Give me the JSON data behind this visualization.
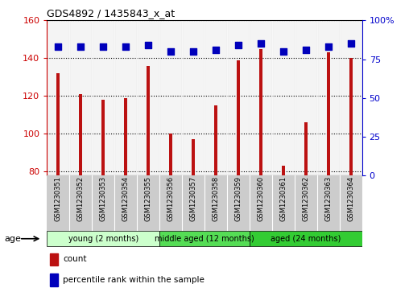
{
  "title": "GDS4892 / 1435843_x_at",
  "samples": [
    "GSM1230351",
    "GSM1230352",
    "GSM1230353",
    "GSM1230354",
    "GSM1230355",
    "GSM1230356",
    "GSM1230357",
    "GSM1230358",
    "GSM1230359",
    "GSM1230360",
    "GSM1230361",
    "GSM1230362",
    "GSM1230363",
    "GSM1230364"
  ],
  "counts": [
    132,
    121,
    118,
    119,
    136,
    100,
    97,
    115,
    139,
    145,
    83,
    106,
    143,
    140
  ],
  "percentiles": [
    83,
    83,
    83,
    83,
    84,
    80,
    80,
    81,
    84,
    85,
    80,
    81,
    83,
    85
  ],
  "ylim_left": [
    78,
    160
  ],
  "ylim_right": [
    0,
    100
  ],
  "yticks_left": [
    80,
    100,
    120,
    140,
    160
  ],
  "yticks_right": [
    0,
    25,
    50,
    75,
    100
  ],
  "bar_color": "#bb1111",
  "dot_color": "#0000bb",
  "groups": [
    {
      "label": "young (2 months)",
      "start": 0,
      "end": 5,
      "color": "#ccffcc"
    },
    {
      "label": "middle aged (12 months)",
      "start": 5,
      "end": 9,
      "color": "#55dd55"
    },
    {
      "label": "aged (24 months)",
      "start": 9,
      "end": 14,
      "color": "#33cc33"
    }
  ],
  "age_label": "age",
  "legend_count_label": "count",
  "legend_percentile_label": "percentile rank within the sample",
  "bar_width": 0.15,
  "dot_size": 30,
  "tick_label_color_left": "#cc0000",
  "tick_label_color_right": "#0000cc"
}
